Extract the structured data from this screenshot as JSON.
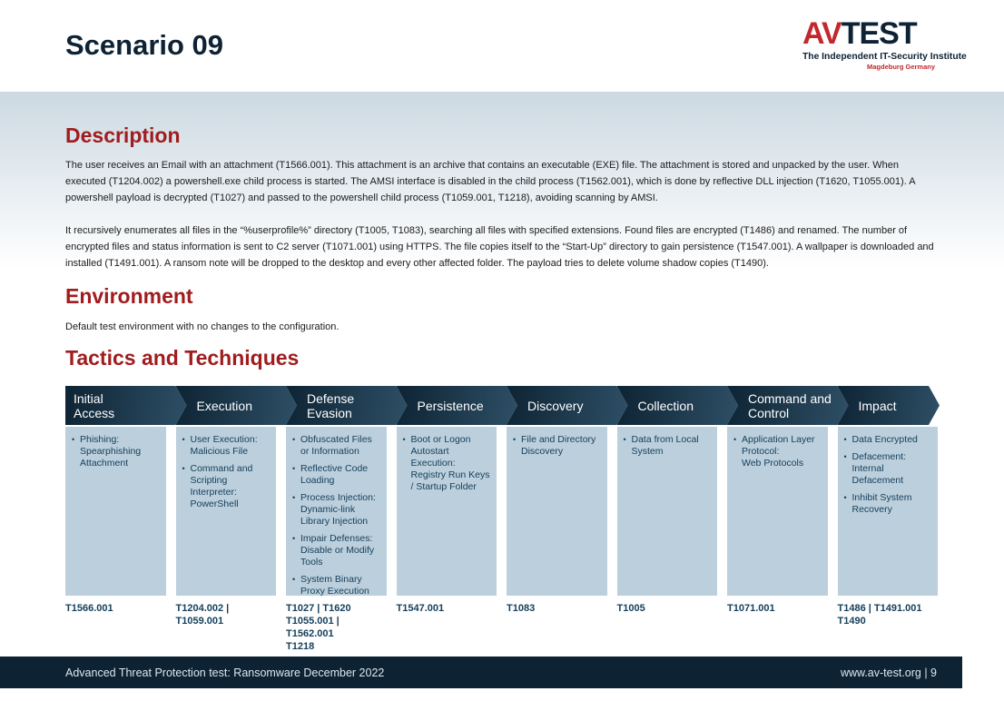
{
  "colors": {
    "accent_red": "#a01c1e",
    "brand_red": "#c2282e",
    "navy": "#0d2234",
    "band_top": "#ccd9e2",
    "head_grad_start": "#0f2636",
    "head_grad_end": "#2e4f66",
    "cell_blue": "#bccfdc",
    "cell_text": "#16405c",
    "footer_bg": "#0d2233"
  },
  "page": {
    "title": "Scenario 09"
  },
  "logo": {
    "av": "AV",
    "test": "TEST",
    "tagline": "The Independent IT-Security Institute",
    "location": "Magdeburg Germany"
  },
  "description": {
    "heading": "Description",
    "paragraphs": {
      "0": "The user receives an Email with an attachment (T1566.001). This attachment is an archive that contains an executable (EXE) file. The attachment is stored and unpacked by the user. When executed (T1204.002) a powershell.exe child process is started. The AMSI interface is disabled in the child process (T1562.001), which is done by reflective DLL injection (T1620, T1055.001). A powershell payload is decrypted (T1027) and passed to the powershell child process (T1059.001, T1218), avoiding scanning by AMSI.",
      "1": "It recursively enumerates all files in the “%userprofile%” directory (T1005, T1083), searching all files with specified extensions. Found files are encrypted (T1486) and renamed. The number of encrypted files and status information is sent to C2 server (T1071.001) using HTTPS. The file copies itself to the “Start-Up” directory to gain persistence (T1547.001). A wallpaper is downloaded and installed (T1491.001). A ransom note will be dropped to the desktop and every other affected folder. The payload tries to delete volume shadow copies (T1490)."
    }
  },
  "environment": {
    "heading": "Environment",
    "text": "Default test environment with no changes to the configuration."
  },
  "tactics": {
    "heading": "Tactics and Techniques",
    "columns": [
      {
        "tactic": "Initial\nAccess",
        "techniques": [
          "Phishing: Spearphishing Attachment"
        ],
        "codes": "T1566.001"
      },
      {
        "tactic": "Execution",
        "techniques": [
          "User Execution: Malicious File",
          "Command and Scripting Interpreter: PowerShell"
        ],
        "codes": "T1204.002 | T1059.001"
      },
      {
        "tactic": "Defense\nEvasion",
        "techniques": [
          "Obfuscated Files or Information",
          "Reflective Code Loading",
          "Process Injection: Dynamic-link Library Injection",
          "Impair Defenses: Disable or Modify Tools",
          "System Binary Proxy Execution"
        ],
        "codes": "T1027 | T1620\nT1055.001 | T1562.001\nT1218"
      },
      {
        "tactic": "Persistence",
        "techniques": [
          "Boot or Logon Autostart Execution: Registry Run Keys / Startup Folder"
        ],
        "codes": "T1547.001"
      },
      {
        "tactic": "Discovery",
        "techniques": [
          "File and Directory Discovery"
        ],
        "codes": "T1083"
      },
      {
        "tactic": "Collection",
        "techniques": [
          "Data from Local System"
        ],
        "codes": "T1005"
      },
      {
        "tactic": "Command and\nControl",
        "techniques": [
          "Application Layer Protocol:\nWeb Protocols"
        ],
        "codes": "T1071.001"
      },
      {
        "tactic": "Impact",
        "techniques": [
          "Data Encrypted",
          "Defacement: Internal Defacement",
          "Inhibit System Recovery"
        ],
        "codes": "T1486 | T1491.001\nT1490"
      }
    ]
  },
  "footer": {
    "left": "Advanced Threat Protection test: Ransomware December 2022",
    "right": "www.av-test.org | 9"
  }
}
